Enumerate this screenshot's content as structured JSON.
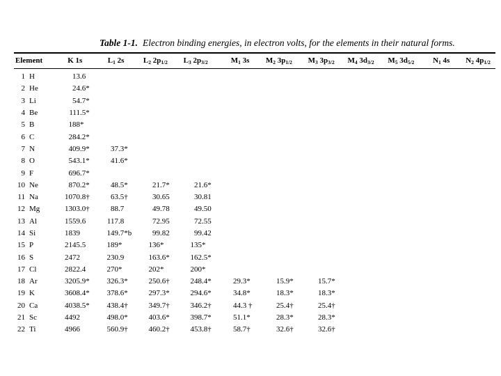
{
  "page": {
    "background": "#ffffff",
    "text_color": "#000000"
  },
  "title": {
    "label": "Table 1-1.",
    "text": "Electron binding energies, in electron volts, for the elements in their natural forms."
  },
  "table": {
    "columns": [
      {
        "a": "Element",
        "b": "",
        "c": "",
        "d": ""
      },
      {
        "a": "K",
        "b": "",
        "c": "1s",
        "d": ""
      },
      {
        "a": "L",
        "b": "1",
        "c": "2s",
        "d": ""
      },
      {
        "a": "L",
        "b": "2",
        "c": "2p",
        "d": "1/2"
      },
      {
        "a": "L",
        "b": "3",
        "c": "2p",
        "d": "3/2"
      },
      {
        "a": "M",
        "b": "1",
        "c": "3s",
        "d": ""
      },
      {
        "a": "M",
        "b": "2",
        "c": "3p",
        "d": "1/2"
      },
      {
        "a": "M",
        "b": "3",
        "c": "3p",
        "d": "3/2"
      },
      {
        "a": "M",
        "b": "4",
        "c": "3d",
        "d": "3/2"
      },
      {
        "a": "M",
        "b": "5",
        "c": "3d",
        "d": "5/2"
      },
      {
        "a": "N",
        "b": "1",
        "c": "4s",
        "d": ""
      },
      {
        "a": "N",
        "b": "2",
        "c": "4p",
        "d": "1/2"
      }
    ],
    "rows": [
      {
        "z": "1",
        "sym": "H",
        "values": [
          "13.6",
          "",
          "",
          "",
          "",
          "",
          "",
          "",
          "",
          "",
          ""
        ]
      },
      {
        "z": "2",
        "sym": "He",
        "values": [
          "24.6*",
          "",
          "",
          "",
          "",
          "",
          "",
          "",
          "",
          "",
          ""
        ]
      },
      {
        "z": "3",
        "sym": "Li",
        "values": [
          "54.7*",
          "",
          "",
          "",
          "",
          "",
          "",
          "",
          "",
          "",
          ""
        ]
      },
      {
        "z": "4",
        "sym": "Be",
        "values": [
          "111.5*",
          "",
          "",
          "",
          "",
          "",
          "",
          "",
          "",
          "",
          ""
        ]
      },
      {
        "z": "5",
        "sym": "B",
        "values": [
          "188*",
          "",
          "",
          "",
          "",
          "",
          "",
          "",
          "",
          "",
          ""
        ]
      },
      {
        "z": "6",
        "sym": "C",
        "values": [
          "284.2*",
          "",
          "",
          "",
          "",
          "",
          "",
          "",
          "",
          "",
          ""
        ]
      },
      {
        "z": "7",
        "sym": "N",
        "values": [
          "409.9*",
          "37.3*",
          "",
          "",
          "",
          "",
          "",
          "",
          "",
          "",
          ""
        ]
      },
      {
        "z": "8",
        "sym": "O",
        "values": [
          "543.1*",
          "41.6*",
          "",
          "",
          "",
          "",
          "",
          "",
          "",
          "",
          ""
        ]
      },
      {
        "z": "9",
        "sym": "F",
        "values": [
          "696.7*",
          "",
          "",
          "",
          "",
          "",
          "",
          "",
          "",
          "",
          ""
        ]
      },
      {
        "z": "10",
        "sym": "Ne",
        "values": [
          "870.2*",
          "48.5*",
          "21.7*",
          "21.6*",
          "",
          "",
          "",
          "",
          "",
          "",
          ""
        ]
      },
      {
        "z": "11",
        "sym": "Na",
        "values": [
          "1070.8†",
          "63.5†",
          "30.65",
          "30.81",
          "",
          "",
          "",
          "",
          "",
          "",
          ""
        ]
      },
      {
        "z": "12",
        "sym": "Mg",
        "values": [
          "1303.0†",
          "88.7",
          "49.78",
          "49.50",
          "",
          "",
          "",
          "",
          "",
          "",
          ""
        ]
      },
      {
        "z": "13",
        "sym": "Al",
        "values": [
          "1559.6",
          "117.8",
          "72.95",
          "72.55",
          "",
          "",
          "",
          "",
          "",
          "",
          ""
        ]
      },
      {
        "z": "14",
        "sym": "Si",
        "values": [
          "1839",
          "149.7*b",
          "99.82",
          "99.42",
          "",
          "",
          "",
          "",
          "",
          "",
          ""
        ]
      },
      {
        "z": "15",
        "sym": "P",
        "values": [
          "2145.5",
          "189*",
          "136*",
          "135*",
          "",
          "",
          "",
          "",
          "",
          "",
          ""
        ]
      },
      {
        "z": "16",
        "sym": "S",
        "values": [
          "2472",
          "230.9",
          "163.6*",
          "162.5*",
          "",
          "",
          "",
          "",
          "",
          "",
          ""
        ]
      },
      {
        "z": "17",
        "sym": "Cl",
        "values": [
          "2822.4",
          "270*",
          "202*",
          "200*",
          "",
          "",
          "",
          "",
          "",
          "",
          ""
        ]
      },
      {
        "z": "18",
        "sym": "Ar",
        "values": [
          "3205.9*",
          "326.3*",
          "250.6†",
          "248.4*",
          "29.3*",
          "15.9*",
          "15.7*",
          "",
          "",
          "",
          ""
        ]
      },
      {
        "z": "19",
        "sym": "K",
        "values": [
          "3608.4*",
          "378.6*",
          "297.3*",
          "294.6*",
          "34.8*",
          "18.3*",
          "18.3*",
          "",
          "",
          "",
          ""
        ]
      },
      {
        "z": "20",
        "sym": "Ca",
        "values": [
          "4038.5*",
          "438.4†",
          "349.7†",
          "346.2†",
          "44.3 †",
          "25.4†",
          "25.4†",
          "",
          "",
          "",
          ""
        ]
      },
      {
        "z": "21",
        "sym": "Sc",
        "values": [
          "4492",
          "498.0*",
          "403.6*",
          "398.7*",
          "51.1*",
          "28.3*",
          "28.3*",
          "",
          "",
          "",
          ""
        ]
      },
      {
        "z": "22",
        "sym": "Ti",
        "values": [
          "4966",
          "560.9†",
          "460.2†",
          "453.8†",
          "58.7†",
          "32.6†",
          "32.6†",
          "",
          "",
          "",
          ""
        ]
      }
    ]
  }
}
